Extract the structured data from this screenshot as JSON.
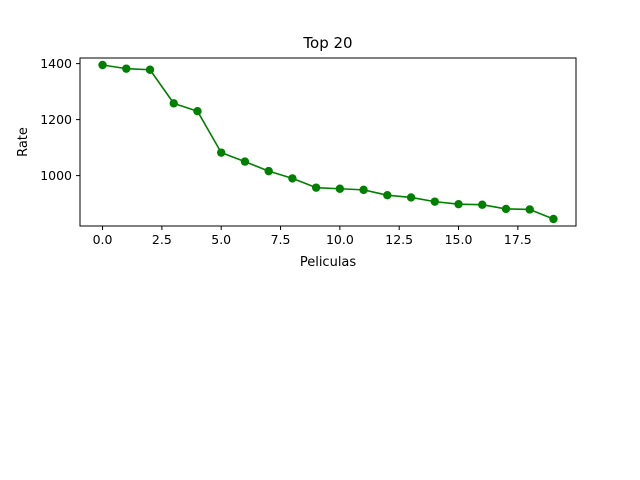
{
  "chart_data": {
    "type": "line",
    "title": "Top 20",
    "xlabel": "Peliculas",
    "ylabel": "Rate",
    "xlim": [
      -0.95,
      19.95
    ],
    "ylim": [
      820,
      1420
    ],
    "grid": false,
    "line_color": "#008000",
    "marker": "circle",
    "xticks": [
      0.0,
      2.5,
      5.0,
      7.5,
      10.0,
      12.5,
      15.0,
      17.5
    ],
    "xtick_labels": [
      "0.0",
      "2.5",
      "5.0",
      "7.5",
      "10.0",
      "12.5",
      "15.0",
      "17.5"
    ],
    "yticks": [
      1000,
      1200,
      1400
    ],
    "ytick_labels": [
      "1000",
      "1200",
      "1400"
    ],
    "series": [
      {
        "x": [
          0,
          1,
          2,
          3,
          4,
          5,
          6,
          7,
          8,
          9,
          10,
          11,
          12,
          13,
          14,
          15,
          16,
          17,
          18,
          19
        ],
        "values": [
          1395,
          1382,
          1378,
          1258,
          1230,
          1082,
          1050,
          1016,
          990,
          957,
          953,
          949,
          930,
          922,
          907,
          898,
          896,
          881,
          879,
          845
        ]
      }
    ]
  }
}
